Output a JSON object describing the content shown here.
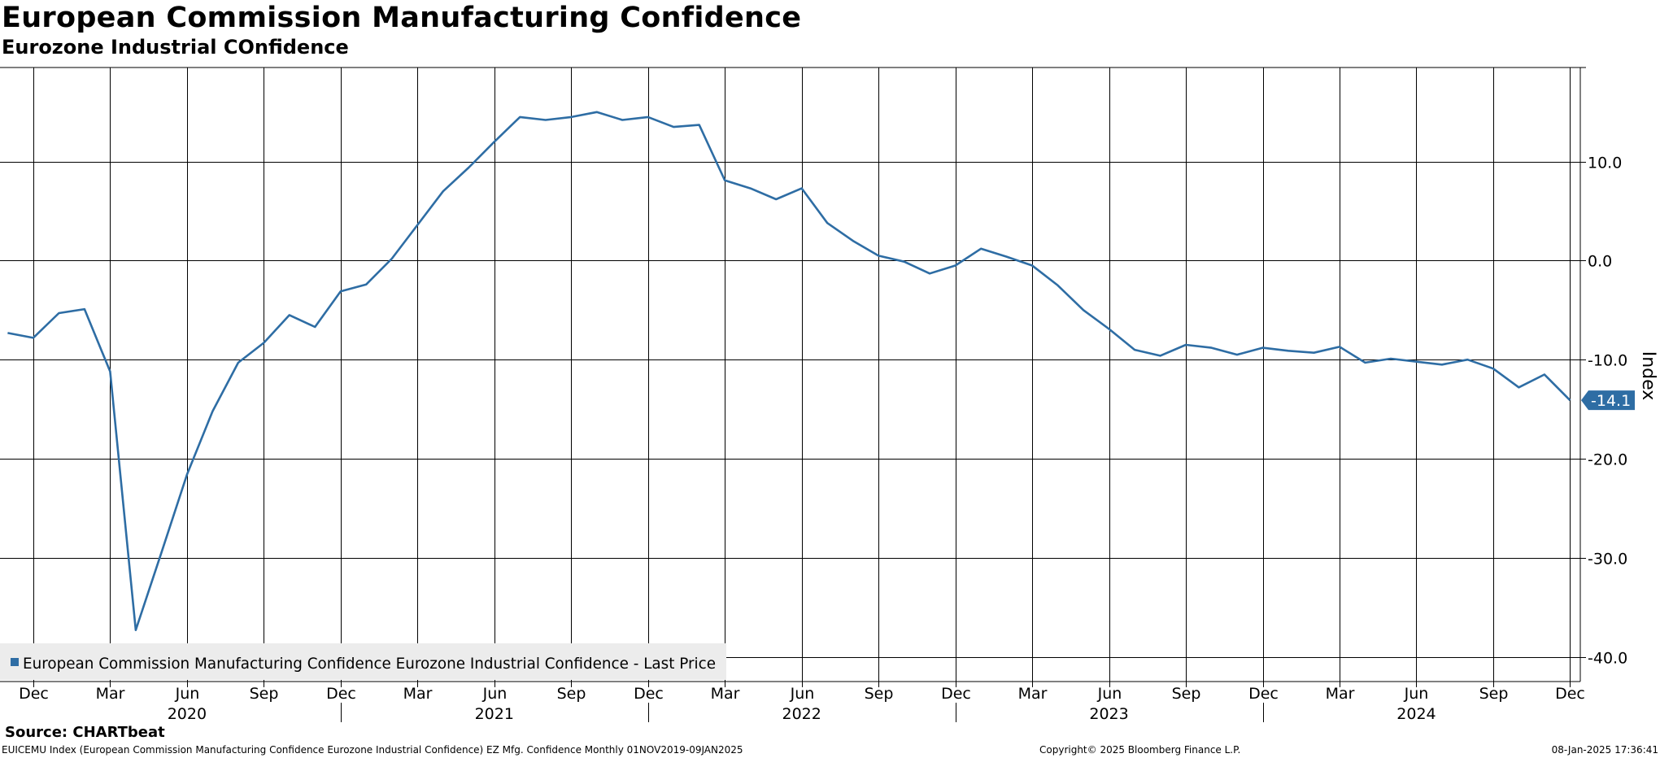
{
  "header": {
    "title": "European Commission Manufacturing Confidence",
    "subtitle": "Eurozone Industrial COnfidence"
  },
  "footer": {
    "source": "Source: CHARTbeat",
    "ticker_info": "EUICEMU Index (European Commission Manufacturing Confidence Eurozone Industrial Confidence) EZ Mfg. Confidence  Monthly 01NOV2019-09JAN2025",
    "copyright": "Copyright© 2025 Bloomberg Finance L.P.",
    "timestamp": "08-Jan-2025 17:36:41"
  },
  "colors": {
    "line": "#2e6da4",
    "grid": "#000000",
    "legend_bg": "#ececec"
  },
  "chart_data": {
    "type": "line",
    "title": "European Commission Manufacturing Confidence",
    "subtitle": "Eurozone Industrial COnfidence",
    "ylabel": "Index",
    "ylim": [
      -42.5,
      19.5
    ],
    "y_ticks": [
      10,
      0,
      -10,
      -20,
      -30,
      -40
    ],
    "y_tick_labels": [
      "10.0",
      "0.0",
      "-10.0",
      "-20.0",
      "-30.0",
      "-40.0"
    ],
    "x_start": "Nov 2019",
    "x_month_index_range": [
      -0.3,
      61.4
    ],
    "x_month_ticks": [
      {
        "index": 1,
        "label": "Dec"
      },
      {
        "index": 4,
        "label": "Mar"
      },
      {
        "index": 7,
        "label": "Jun"
      },
      {
        "index": 10,
        "label": "Sep"
      },
      {
        "index": 13,
        "label": "Dec"
      },
      {
        "index": 16,
        "label": "Mar"
      },
      {
        "index": 19,
        "label": "Jun"
      },
      {
        "index": 22,
        "label": "Sep"
      },
      {
        "index": 25,
        "label": "Dec"
      },
      {
        "index": 28,
        "label": "Mar"
      },
      {
        "index": 31,
        "label": "Jun"
      },
      {
        "index": 34,
        "label": "Sep"
      },
      {
        "index": 37,
        "label": "Dec"
      },
      {
        "index": 40,
        "label": "Mar"
      },
      {
        "index": 43,
        "label": "Jun"
      },
      {
        "index": 46,
        "label": "Sep"
      },
      {
        "index": 49,
        "label": "Dec"
      },
      {
        "index": 52,
        "label": "Mar"
      },
      {
        "index": 55,
        "label": "Jun"
      },
      {
        "index": 58,
        "label": "Sep"
      },
      {
        "index": 61,
        "label": "Dec"
      }
    ],
    "x_year_labels": [
      {
        "index": 7,
        "label": "2020"
      },
      {
        "index": 19,
        "label": "2021"
      },
      {
        "index": 31,
        "label": "2022"
      },
      {
        "index": 43,
        "label": "2023"
      },
      {
        "index": 55,
        "label": "2024"
      }
    ],
    "x_year_separators": [
      13,
      25,
      37,
      49
    ],
    "series": [
      {
        "name": "European Commission Manufacturing Confidence Eurozone Industrial Confidence - Last Price",
        "start_index": 0,
        "values": [
          -7.3,
          -7.8,
          -5.3,
          -4.9,
          -11.2,
          -37.3,
          -29.5,
          -21.6,
          -15.2,
          -10.3,
          -8.3,
          -5.5,
          -6.7,
          -3.1,
          -2.4,
          0.2,
          3.6,
          7.0,
          9.4,
          12.0,
          14.5,
          14.2,
          14.5,
          15.0,
          14.2,
          14.5,
          13.5,
          13.7,
          8.1,
          7.3,
          6.2,
          7.3,
          3.8,
          2.0,
          0.5,
          -0.1,
          -1.3,
          -0.5,
          1.2,
          0.4,
          -0.5,
          -2.5,
          -5.0,
          -6.9,
          -9.0,
          -9.6,
          -8.5,
          -8.8,
          -9.5,
          -8.8,
          -9.1,
          -9.3,
          -8.7,
          -10.3,
          -9.9,
          -10.2,
          -10.5,
          -10.0,
          -10.9,
          -12.8,
          -11.5,
          -14.1
        ]
      }
    ],
    "last_value_label": "-14.1",
    "legend": {
      "label": "European Commission Manufacturing Confidence Eurozone Industrial Confidence - Last Price",
      "position": "bottom-left"
    },
    "grid": true
  }
}
